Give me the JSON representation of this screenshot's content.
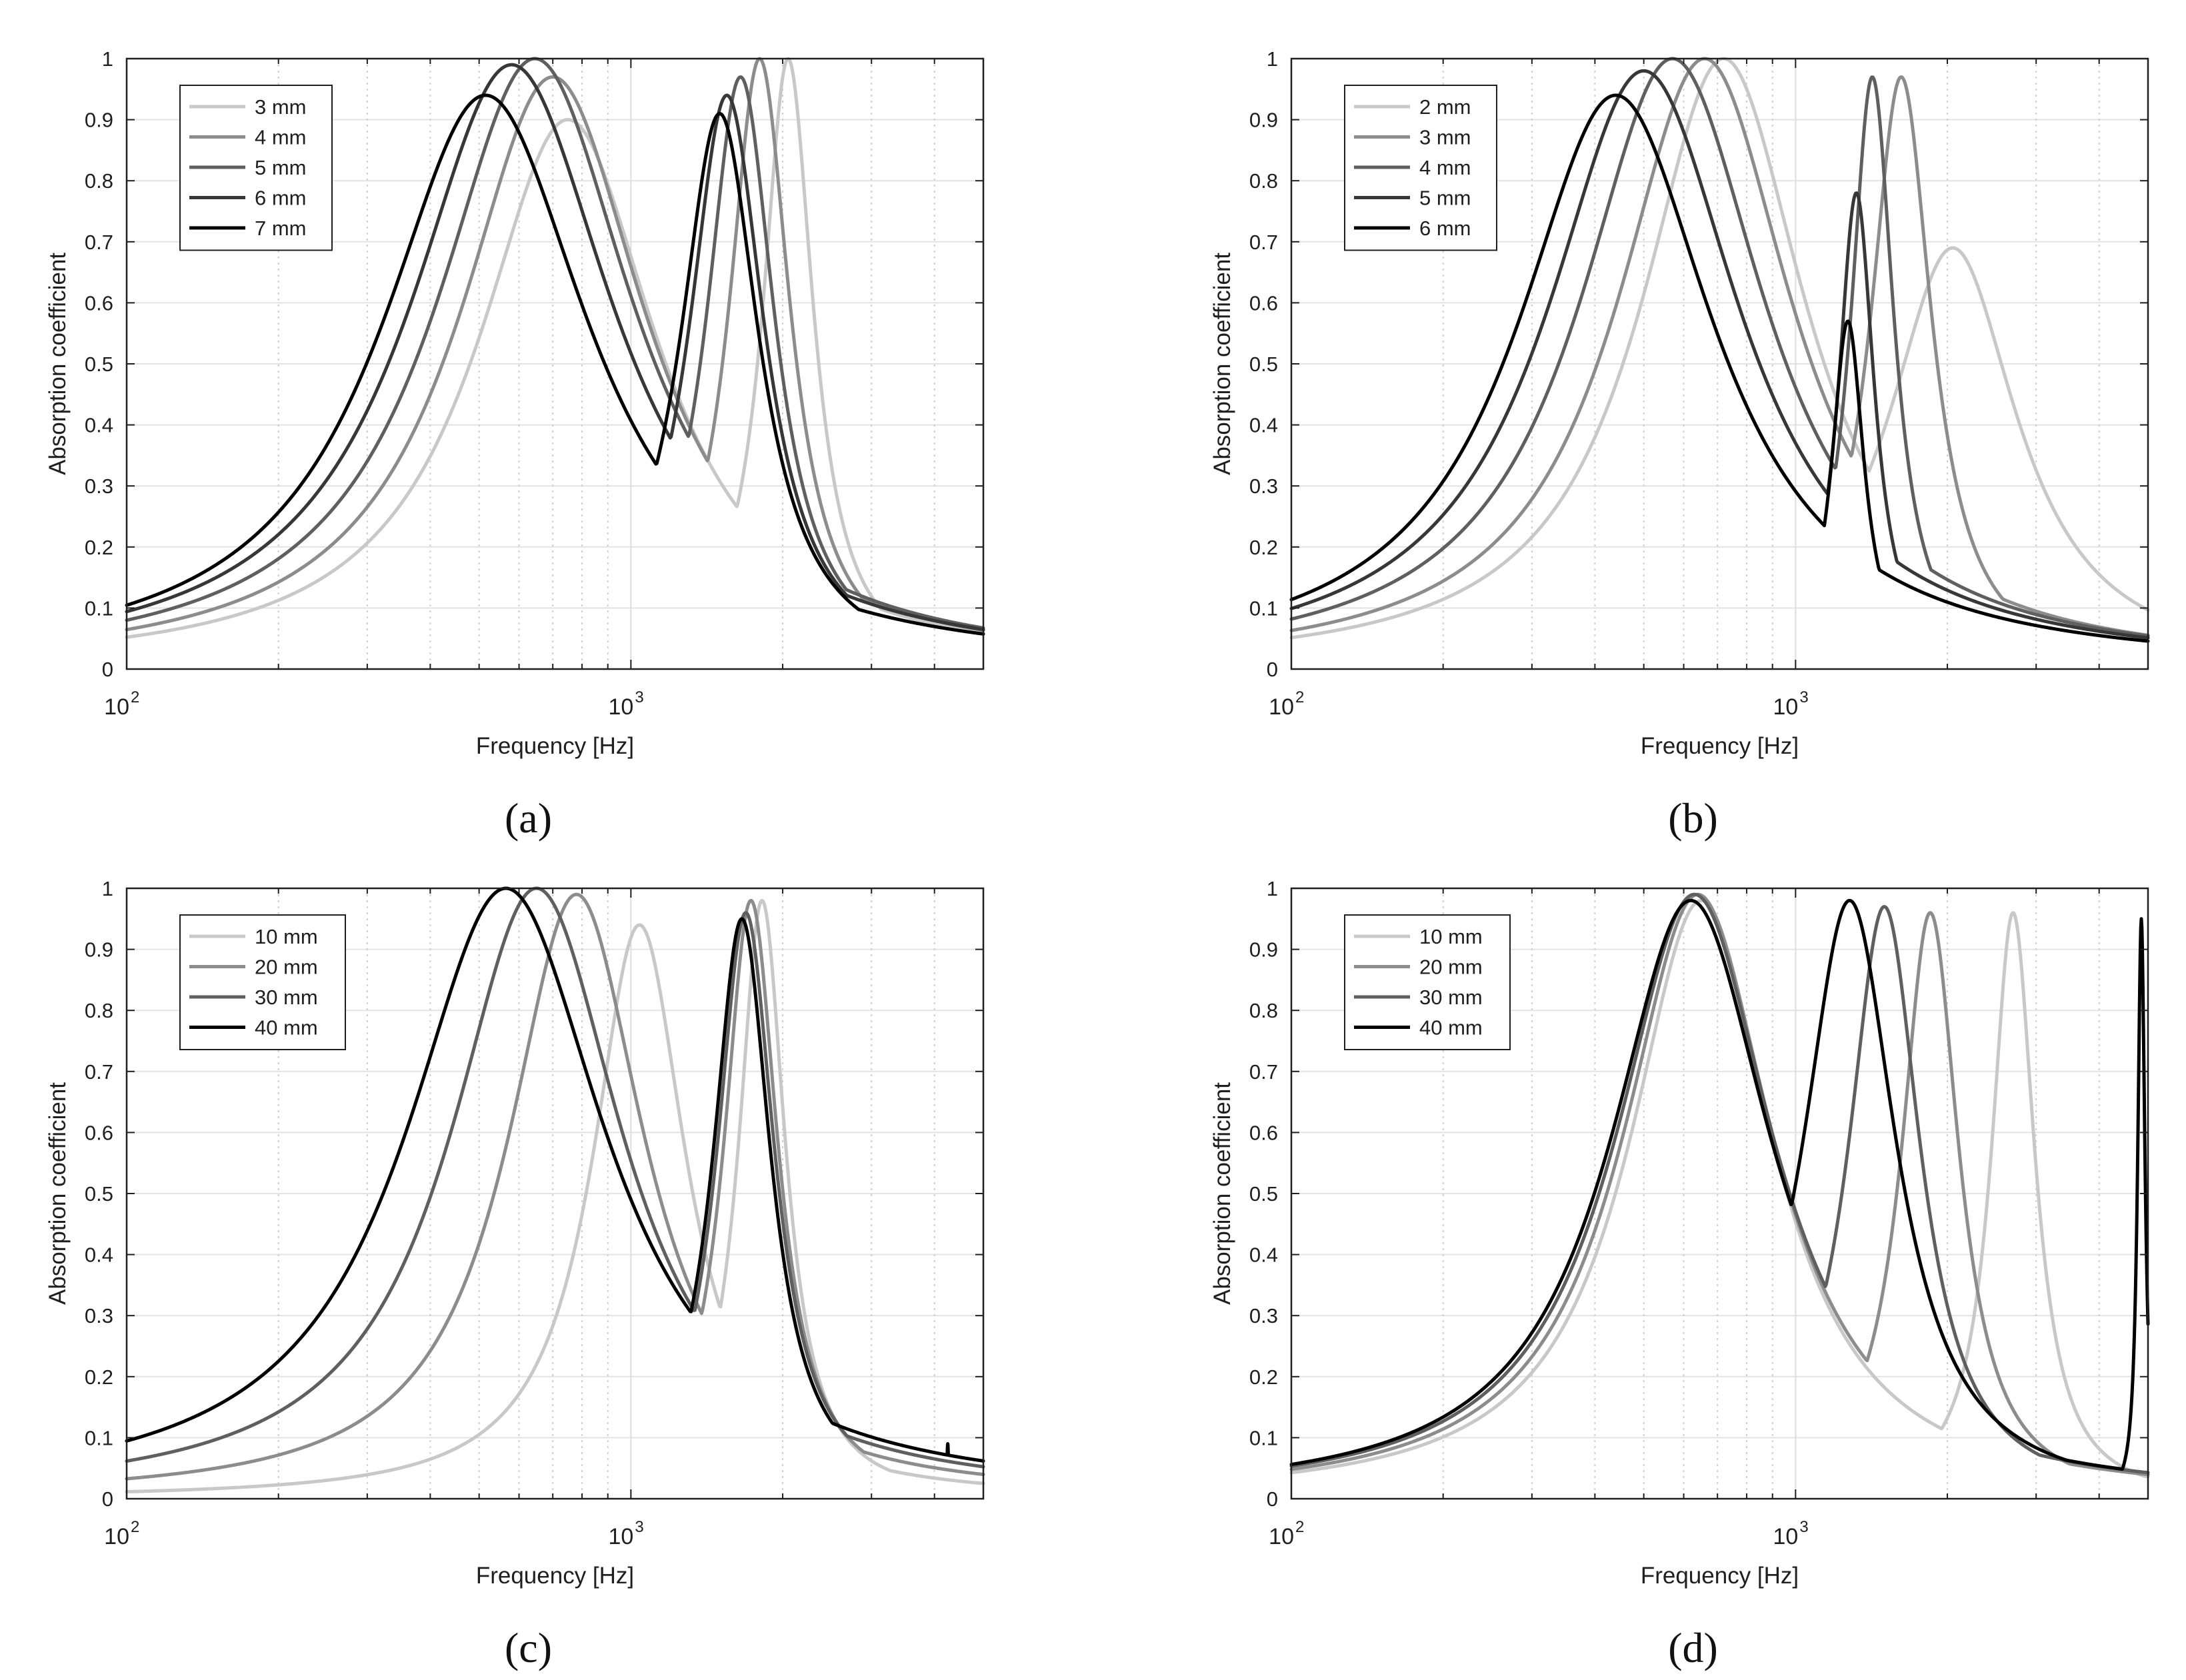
{
  "chart_data": [
    {
      "type": "line",
      "panel_label": "(a)",
      "xlabel": "Frequency [Hz]",
      "ylabel": "Absorption coefficient",
      "xscale": "log",
      "xlim": [
        100,
        5000
      ],
      "ylim": [
        0,
        1
      ],
      "yticks": [
        "0",
        "0.1",
        "0.2",
        "0.3",
        "0.4",
        "0.5",
        "0.6",
        "0.7",
        "0.8",
        "0.9",
        "1"
      ],
      "xticks": [
        {
          "base": "10",
          "exp": "2"
        },
        {
          "base": "10",
          "exp": "3"
        }
      ],
      "grid": true,
      "legend": "top-left",
      "series": [
        {
          "name": "3 mm",
          "color": "#c8c8c8",
          "peaks": [
            [
              750,
              0.9,
              0.5
            ],
            [
              2050,
              1.0,
              0.14
            ]
          ],
          "spikes": []
        },
        {
          "name": "4 mm",
          "color": "#8c8c8c",
          "peaks": [
            [
              700,
              0.97,
              0.52
            ],
            [
              1800,
              1.0,
              0.17
            ]
          ],
          "spikes": []
        },
        {
          "name": "5 mm",
          "color": "#5f5f5f",
          "peaks": [
            [
              645,
              1.0,
              0.55
            ],
            [
              1650,
              0.97,
              0.19
            ]
          ],
          "spikes": []
        },
        {
          "name": "6 mm",
          "color": "#373737",
          "peaks": [
            [
              580,
              0.99,
              0.57
            ],
            [
              1550,
              0.94,
              0.21
            ]
          ],
          "spikes": []
        },
        {
          "name": "7 mm",
          "color": "#000000",
          "peaks": [
            [
              515,
              0.94,
              0.58
            ],
            [
              1500,
              0.91,
              0.22
            ]
          ],
          "spikes": []
        }
      ]
    },
    {
      "type": "line",
      "panel_label": "(b)",
      "xlabel": "Frequency [Hz]",
      "ylabel": "Absorption coefficient",
      "xscale": "log",
      "xlim": [
        100,
        5000
      ],
      "ylim": [
        0,
        1
      ],
      "yticks": [
        "0",
        "0.1",
        "0.2",
        "0.3",
        "0.4",
        "0.5",
        "0.6",
        "0.7",
        "0.8",
        "0.9",
        "1"
      ],
      "xticks": [
        {
          "base": "10",
          "exp": "2"
        },
        {
          "base": "10",
          "exp": "3"
        }
      ],
      "grid": true,
      "legend": "top-left",
      "series": [
        {
          "name": "2 mm",
          "color": "#c8c8c8",
          "peaks": [
            [
              720,
              1.0,
              0.46
            ],
            [
              2050,
              0.69,
              0.36
            ]
          ],
          "spikes": []
        },
        {
          "name": "3 mm",
          "color": "#8c8c8c",
          "peaks": [
            [
              660,
              1.0,
              0.49
            ],
            [
              1620,
              0.97,
              0.17
            ]
          ],
          "spikes": []
        },
        {
          "name": "4 mm",
          "color": "#5f5f5f",
          "peaks": [
            [
              570,
              1.0,
              0.52
            ],
            [
              1420,
              0.97,
              0.12
            ]
          ],
          "spikes": []
        },
        {
          "name": "5 mm",
          "color": "#373737",
          "peaks": [
            [
              500,
              0.98,
              0.54
            ],
            [
              1320,
              0.78,
              0.1
            ]
          ],
          "spikes": []
        },
        {
          "name": "6 mm",
          "color": "#000000",
          "peaks": [
            [
              440,
              0.94,
              0.55
            ],
            [
              1270,
              0.57,
              0.09
            ]
          ],
          "spikes": []
        }
      ]
    },
    {
      "type": "line",
      "panel_label": "(c)",
      "xlabel": "Frequency [Hz]",
      "ylabel": "Absorption coefficient",
      "xscale": "log",
      "xlim": [
        100,
        5000
      ],
      "ylim": [
        0,
        1
      ],
      "yticks": [
        "0",
        "0.1",
        "0.2",
        "0.3",
        "0.4",
        "0.5",
        "0.6",
        "0.7",
        "0.8",
        "0.9",
        "1"
      ],
      "xticks": [
        {
          "base": "10",
          "exp": "2"
        },
        {
          "base": "10",
          "exp": "3"
        }
      ],
      "grid": true,
      "legend": "top-left",
      "series": [
        {
          "name": "10 mm",
          "color": "#c8c8c8",
          "peaks": [
            [
              1040,
              0.94,
              0.26
            ],
            [
              1820,
              0.98,
              0.13
            ]
          ],
          "spikes": []
        },
        {
          "name": "20 mm",
          "color": "#8c8c8c",
          "peaks": [
            [
              780,
              0.99,
              0.38
            ],
            [
              1730,
              0.98,
              0.15
            ]
          ],
          "spikes": []
        },
        {
          "name": "30 mm",
          "color": "#5f5f5f",
          "peaks": [
            [
              650,
              1.0,
              0.48
            ],
            [
              1690,
              0.96,
              0.16
            ]
          ],
          "spikes": []
        },
        {
          "name": "40 mm",
          "color": "#000000",
          "peaks": [
            [
              565,
              1.0,
              0.56
            ],
            [
              1660,
              0.95,
              0.16
            ]
          ],
          "spikes": [
            [
              4250,
              0.09,
              0.005
            ]
          ]
        }
      ]
    },
    {
      "type": "line",
      "panel_label": "(d)",
      "xlabel": "Frequency [Hz]",
      "ylabel": "Absorption coefficient",
      "xscale": "log",
      "xlim": [
        100,
        5000
      ],
      "ylim": [
        0,
        1
      ],
      "yticks": [
        "0",
        "0.1",
        "0.2",
        "0.3",
        "0.4",
        "0.5",
        "0.6",
        "0.7",
        "0.8",
        "0.9",
        "1"
      ],
      "xticks": [
        {
          "base": "10",
          "exp": "2"
        },
        {
          "base": "10",
          "exp": "3"
        }
      ],
      "grid": true,
      "legend": "top-left",
      "series": [
        {
          "name": "10 mm",
          "color": "#c8c8c8",
          "peaks": [
            [
              650,
              0.98,
              0.4
            ],
            [
              2700,
              0.96,
              0.12
            ]
          ],
          "spikes": []
        },
        {
          "name": "20 mm",
          "color": "#8c8c8c",
          "peaks": [
            [
              640,
              0.99,
              0.42
            ],
            [
              1850,
              0.96,
              0.16
            ]
          ],
          "spikes": []
        },
        {
          "name": "30 mm",
          "color": "#5f5f5f",
          "peaks": [
            [
              630,
              0.99,
              0.44
            ],
            [
              1500,
              0.97,
              0.2
            ]
          ],
          "spikes": []
        },
        {
          "name": "40 mm",
          "color": "#000000",
          "peaks": [
            [
              620,
              0.98,
              0.45
            ],
            [
              1280,
              0.98,
              0.26
            ]
          ],
          "spikes": [
            [
              4850,
              0.95,
              0.02
            ]
          ]
        }
      ]
    }
  ]
}
